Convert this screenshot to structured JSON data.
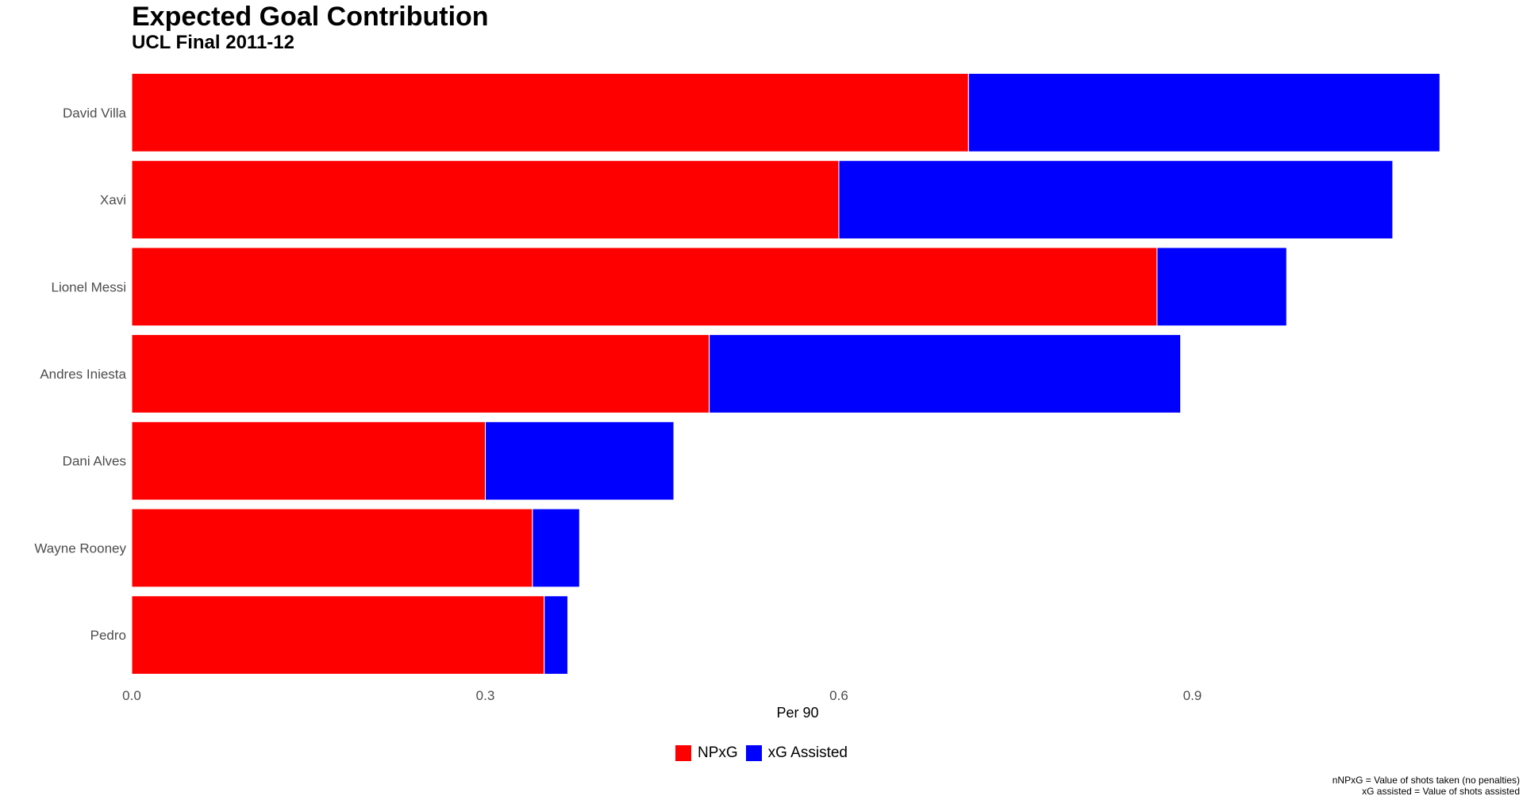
{
  "chart_data": {
    "type": "bar",
    "orientation": "horizontal",
    "stacked": true,
    "title": "Expected Goal Contribution",
    "subtitle": "UCL Final 2011-12",
    "xlabel": "Per 90",
    "ylabel": "",
    "xlim": [
      0,
      1.13
    ],
    "xticks": [
      0.0,
      0.3,
      0.6,
      0.9
    ],
    "xtick_labels": [
      "0.0",
      "0.3",
      "0.6",
      "0.9"
    ],
    "grid": false,
    "legend_position": "bottom",
    "categories": [
      "David Villa",
      "Xavi",
      "Lionel Messi",
      "Andres Iniesta",
      "Dani Alves",
      "Wayne Rooney",
      "Pedro"
    ],
    "series": [
      {
        "name": "NPxG",
        "color": "#ff0000",
        "values": [
          0.71,
          0.6,
          0.87,
          0.49,
          0.3,
          0.34,
          0.35
        ]
      },
      {
        "name": "xG Assisted",
        "color": "#0000ff",
        "values": [
          0.4,
          0.47,
          0.11,
          0.4,
          0.16,
          0.04,
          0.02
        ]
      }
    ],
    "caption": [
      "nNPxG = Value of shots taken (no penalties)",
      "xG assisted = Value of shots assisted"
    ]
  }
}
